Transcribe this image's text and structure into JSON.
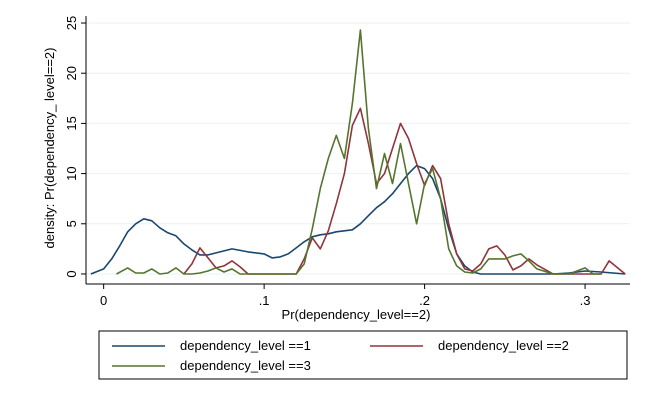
{
  "chart_data": {
    "type": "line",
    "xlabel": "Pr(dependency_level==2)",
    "ylabel": "density: Pr(dependency_ level==2)",
    "xlim": [
      -0.011,
      0.328
    ],
    "ylim": [
      -1,
      25.7
    ],
    "x_ticks": [
      {
        "value": 0,
        "label": "0"
      },
      {
        "value": 0.1,
        "label": ".1"
      },
      {
        "value": 0.2,
        "label": ".2"
      },
      {
        "value": 0.3,
        "label": ".3"
      }
    ],
    "y_ticks": [
      {
        "value": 0,
        "label": "0"
      },
      {
        "value": 5,
        "label": "5"
      },
      {
        "value": 10,
        "label": "10"
      },
      {
        "value": 15,
        "label": "15"
      },
      {
        "value": 20,
        "label": "20"
      },
      {
        "value": 25,
        "label": "25"
      }
    ],
    "grid": "horizontal",
    "legend_position": "bottom",
    "series": [
      {
        "name": "dependency_level ==1",
        "color": "#1a476f",
        "x": [
          -0.008,
          0.0,
          0.005,
          0.01,
          0.015,
          0.02,
          0.025,
          0.03,
          0.035,
          0.04,
          0.045,
          0.05,
          0.055,
          0.06,
          0.065,
          0.07,
          0.075,
          0.08,
          0.09,
          0.1,
          0.105,
          0.11,
          0.115,
          0.12,
          0.125,
          0.13,
          0.135,
          0.14,
          0.145,
          0.15,
          0.155,
          0.16,
          0.165,
          0.17,
          0.175,
          0.18,
          0.185,
          0.19,
          0.195,
          0.2,
          0.205,
          0.21,
          0.215,
          0.22,
          0.225,
          0.23,
          0.235,
          0.24,
          0.245,
          0.25,
          0.26,
          0.27,
          0.28,
          0.29,
          0.3,
          0.31,
          0.325
        ],
        "values": [
          0,
          0.5,
          1.5,
          2.8,
          4.2,
          5.0,
          5.5,
          5.3,
          4.6,
          4.1,
          3.8,
          3.0,
          2.4,
          1.9,
          1.9,
          2.1,
          2.3,
          2.5,
          2.2,
          2.0,
          1.6,
          1.7,
          2.0,
          2.6,
          3.2,
          3.7,
          3.9,
          4.0,
          4.2,
          4.3,
          4.4,
          5.0,
          5.8,
          6.6,
          7.2,
          8.0,
          9.0,
          10.0,
          10.8,
          10.5,
          9.5,
          7.5,
          4.5,
          2.0,
          0.8,
          0.2,
          0.0,
          0.0,
          0.0,
          0.0,
          0.0,
          0.0,
          0.0,
          0.1,
          0.3,
          0.2,
          0.0
        ]
      },
      {
        "name": "dependency_level ==2",
        "color": "#90353b",
        "x": [
          0.05,
          0.055,
          0.06,
          0.065,
          0.07,
          0.075,
          0.08,
          0.085,
          0.09,
          0.1,
          0.11,
          0.12,
          0.125,
          0.13,
          0.135,
          0.14,
          0.145,
          0.15,
          0.155,
          0.16,
          0.165,
          0.17,
          0.175,
          0.18,
          0.185,
          0.19,
          0.195,
          0.2,
          0.205,
          0.21,
          0.215,
          0.22,
          0.225,
          0.23,
          0.235,
          0.24,
          0.245,
          0.25,
          0.255,
          0.26,
          0.265,
          0.27,
          0.28,
          0.29,
          0.3,
          0.31,
          0.315,
          0.325
        ],
        "values": [
          0,
          1.0,
          2.6,
          1.6,
          0.6,
          0.8,
          1.3,
          0.7,
          0.0,
          0.0,
          0.0,
          0.0,
          1.5,
          3.6,
          2.5,
          4.3,
          7.0,
          10.0,
          14.8,
          16.5,
          13.0,
          9.0,
          10.0,
          12.5,
          15.0,
          13.5,
          11.0,
          8.8,
          10.8,
          9.5,
          5.0,
          2.0,
          0.5,
          0.3,
          1.0,
          2.5,
          2.8,
          1.9,
          0.4,
          0.8,
          1.5,
          0.9,
          0.0,
          0.0,
          0.0,
          0.0,
          1.3,
          0.0
        ]
      },
      {
        "name": "dependency_level ==3",
        "color": "#55752f",
        "x": [
          0.008,
          0.015,
          0.02,
          0.025,
          0.03,
          0.035,
          0.04,
          0.045,
          0.05,
          0.055,
          0.06,
          0.065,
          0.07,
          0.075,
          0.08,
          0.085,
          0.09,
          0.1,
          0.11,
          0.12,
          0.125,
          0.13,
          0.135,
          0.14,
          0.145,
          0.15,
          0.155,
          0.16,
          0.165,
          0.17,
          0.175,
          0.18,
          0.185,
          0.19,
          0.195,
          0.2,
          0.205,
          0.21,
          0.215,
          0.22,
          0.225,
          0.23,
          0.235,
          0.24,
          0.245,
          0.25,
          0.255,
          0.26,
          0.265,
          0.27,
          0.28,
          0.29,
          0.3,
          0.305,
          0.31
        ],
        "values": [
          0,
          0.6,
          0.1,
          0.1,
          0.5,
          0.0,
          0.1,
          0.6,
          0.0,
          0.0,
          0.1,
          0.3,
          0.6,
          0.2,
          0.5,
          0.0,
          0.0,
          0.0,
          0.0,
          0.0,
          1.0,
          4.5,
          8.5,
          11.5,
          13.8,
          11.5,
          17.0,
          24.3,
          14.5,
          8.5,
          12.0,
          9.0,
          13.0,
          9.0,
          5.0,
          9.0,
          10.5,
          7.5,
          2.5,
          0.8,
          0.2,
          0.1,
          0.5,
          1.5,
          1.5,
          1.5,
          1.8,
          2.0,
          1.3,
          0.5,
          0.0,
          0.0,
          0.6,
          0.0,
          0.0
        ]
      }
    ]
  }
}
